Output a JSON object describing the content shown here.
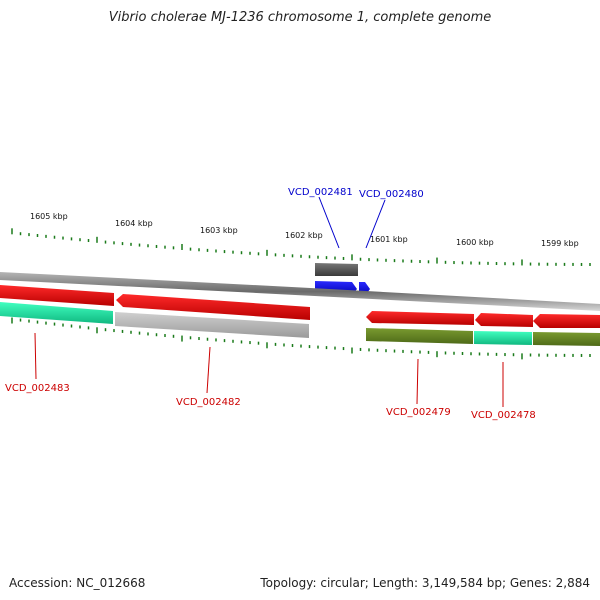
{
  "title": "Vibrio cholerae MJ-1236 chromosome 1, complete genome",
  "footer": {
    "accession": "Accession: NC_012668",
    "summary": "Topology: circular; Length: 3,149,584 bp; Genes: 2,884"
  },
  "ruler": [
    "1605 kbp",
    "1604 kbp",
    "1603 kbp",
    "1602 kbp",
    "1601 kbp",
    "1600 kbp",
    "1599 kbp"
  ],
  "labels": {
    "vcd_002481": "VCD_002481",
    "vcd_002480": "VCD_002480",
    "vcd_002483": "VCD_002483",
    "vcd_002482": "VCD_002482",
    "vcd_002479": "VCD_002479",
    "vcd_002478": "VCD_002478"
  },
  "colors": {
    "forward_gene": "#0000ee",
    "reverse_gene": "#ee0000",
    "backbone": "#777777",
    "tick": "#1a7a1a",
    "cog_teal": "#22e0a0",
    "cog_olive": "#6b8e23",
    "cog_gray": "#b8b8b8",
    "cog_dark": "#555555"
  }
}
